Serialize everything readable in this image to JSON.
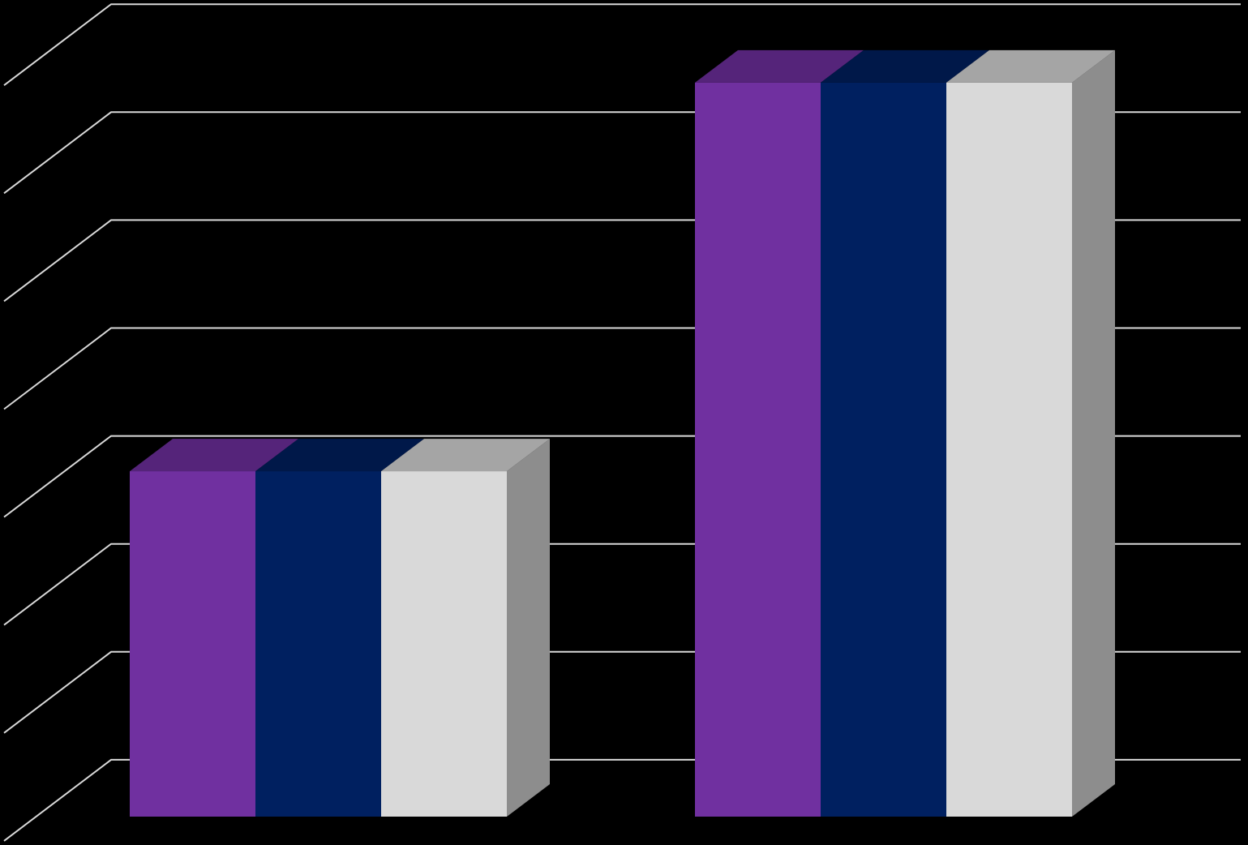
{
  "chart_data": {
    "type": "bar3d",
    "categories": [
      null,
      null
    ],
    "series": [
      {
        "color": "#7030a0",
        "values": [
          3.2,
          6.8
        ]
      },
      {
        "color": "#002060",
        "values": [
          3.2,
          6.8
        ]
      },
      {
        "color": "#d9d9d9",
        "values": [
          3.2,
          6.8
        ]
      }
    ],
    "ylim": [
      0,
      8
    ],
    "yticks": [
      1,
      2,
      3,
      4,
      5,
      6,
      7,
      8
    ],
    "grid": true,
    "grid_color": "#d9d9d9",
    "background": "#000000"
  }
}
